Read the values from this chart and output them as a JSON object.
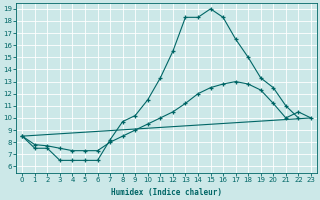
{
  "xlabel": "Humidex (Indice chaleur)",
  "bg_color": "#cce8e8",
  "line_color": "#006666",
  "grid_color": "#b8d8d8",
  "xlim": [
    -0.5,
    23.5
  ],
  "ylim": [
    5.5,
    19.5
  ],
  "xticks": [
    0,
    1,
    2,
    3,
    4,
    5,
    6,
    7,
    8,
    9,
    10,
    11,
    12,
    13,
    14,
    15,
    16,
    17,
    18,
    19,
    20,
    21,
    22,
    23
  ],
  "yticks": [
    6,
    7,
    8,
    9,
    10,
    11,
    12,
    13,
    14,
    15,
    16,
    17,
    18,
    19
  ],
  "curve1_x": [
    0,
    1,
    2,
    3,
    4,
    5,
    6,
    7,
    8,
    9,
    10,
    11,
    12,
    13,
    14,
    15,
    16,
    17,
    18,
    19,
    20,
    21,
    22
  ],
  "curve1_y": [
    8.5,
    7.5,
    7.5,
    6.5,
    6.5,
    6.5,
    6.5,
    8.2,
    9.7,
    10.2,
    11.5,
    13.3,
    15.5,
    18.3,
    18.3,
    19.0,
    18.3,
    16.5,
    15.0,
    13.3,
    12.5,
    11.0,
    10.0
  ],
  "curve2_x": [
    0,
    1,
    2,
    3,
    4,
    5,
    6,
    7,
    8,
    9,
    10,
    11,
    12,
    13,
    14,
    15,
    16,
    17,
    18,
    19,
    20,
    21,
    22,
    23
  ],
  "curve2_y": [
    8.5,
    7.8,
    7.7,
    7.5,
    7.3,
    7.3,
    7.3,
    8.0,
    8.5,
    9.0,
    9.5,
    10.0,
    10.5,
    11.2,
    12.0,
    12.5,
    12.8,
    13.0,
    12.8,
    12.3,
    11.2,
    10.0,
    10.5,
    10.0
  ],
  "curve3_x": [
    0,
    23
  ],
  "curve3_y": [
    8.5,
    10.0
  ],
  "xlabel_fontsize": 5.5,
  "tick_fontsize": 5,
  "linewidth": 0.8,
  "markersize": 3.0
}
